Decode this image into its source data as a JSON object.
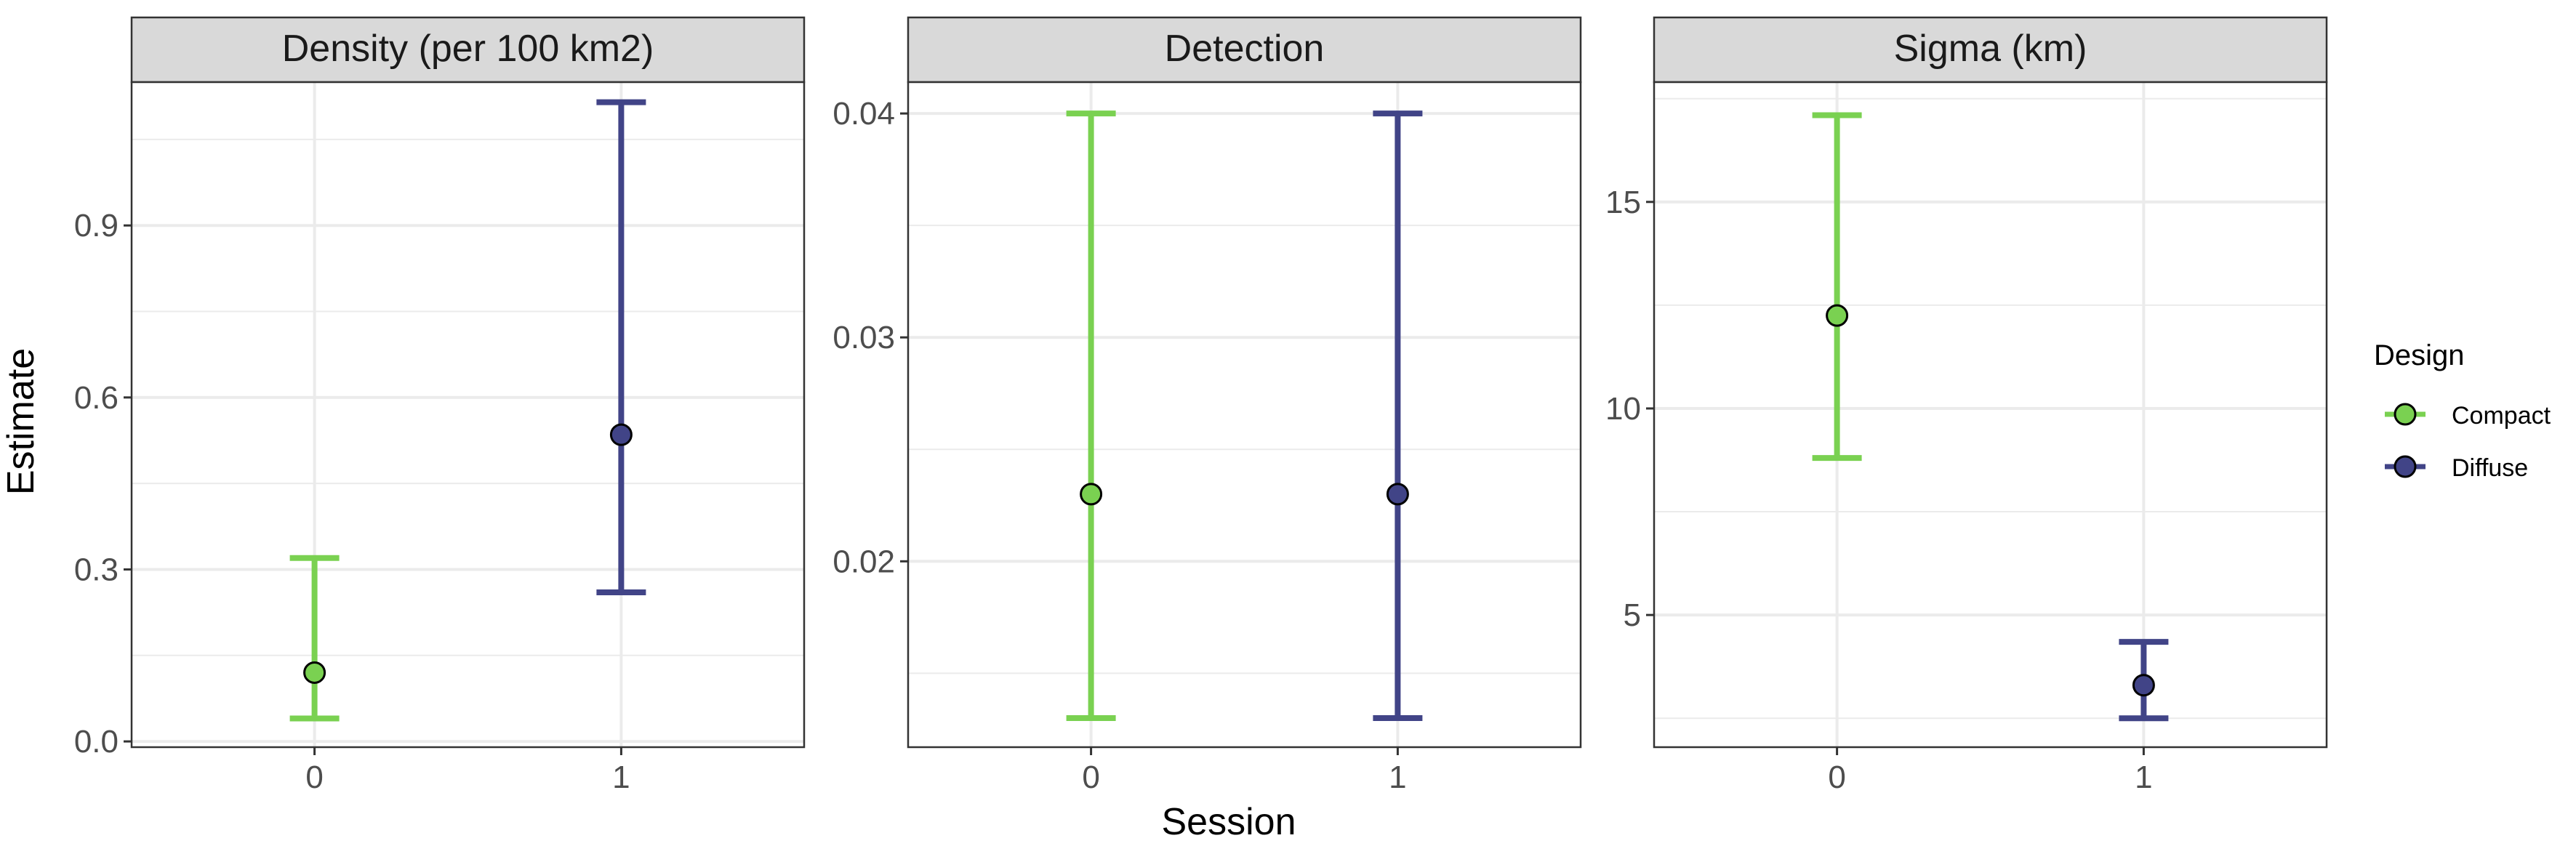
{
  "figure": {
    "ylabel": "Estimate",
    "xlabel": "Session",
    "legend": {
      "title": "Design",
      "position": "right",
      "items": [
        {
          "label": "Compact",
          "color": "#7AD151"
        },
        {
          "label": "Diffuse",
          "color": "#414487"
        }
      ]
    },
    "colors": {
      "strip_background": "#D9D9D9",
      "panel_border": "#333333",
      "grid": "#EBEBEB",
      "point_outline": "#000000",
      "tick_text": "#4D4D4D"
    }
  },
  "chart_data": [
    {
      "type": "scatter",
      "title": "Density (per 100 km2)",
      "categories": [
        "0",
        "1"
      ],
      "ylim": [
        -0.01,
        1.15
      ],
      "yticks": [
        0.0,
        0.3,
        0.6,
        0.9
      ],
      "ytick_labels": [
        "0.0",
        "0.3",
        "0.6",
        "0.9"
      ],
      "grid": true,
      "series": [
        {
          "name": "Compact",
          "x": "0",
          "estimate": 0.12,
          "lower": 0.04,
          "upper": 0.32
        },
        {
          "name": "Diffuse",
          "x": "1",
          "estimate": 0.535,
          "lower": 0.26,
          "upper": 1.115
        }
      ]
    },
    {
      "type": "scatter",
      "title": "Detection",
      "categories": [
        "0",
        "1"
      ],
      "ylim": [
        0.0117,
        0.0414
      ],
      "yticks": [
        0.02,
        0.03,
        0.04
      ],
      "ytick_labels": [
        "0.02",
        "0.03",
        "0.04"
      ],
      "grid": true,
      "series": [
        {
          "name": "Compact",
          "x": "0",
          "estimate": 0.023,
          "lower": 0.013,
          "upper": 0.04
        },
        {
          "name": "Diffuse",
          "x": "1",
          "estimate": 0.023,
          "lower": 0.013,
          "upper": 0.04
        }
      ]
    },
    {
      "type": "scatter",
      "title": "Sigma (km)",
      "categories": [
        "0",
        "1"
      ],
      "ylim": [
        1.8,
        17.9
      ],
      "yticks": [
        5,
        10,
        15
      ],
      "ytick_labels": [
        "5",
        "10",
        "15"
      ],
      "grid": true,
      "series": [
        {
          "name": "Compact",
          "x": "0",
          "estimate": 12.25,
          "lower": 8.8,
          "upper": 17.1
        },
        {
          "name": "Diffuse",
          "x": "1",
          "estimate": 3.3,
          "lower": 2.5,
          "upper": 4.35
        }
      ]
    }
  ]
}
